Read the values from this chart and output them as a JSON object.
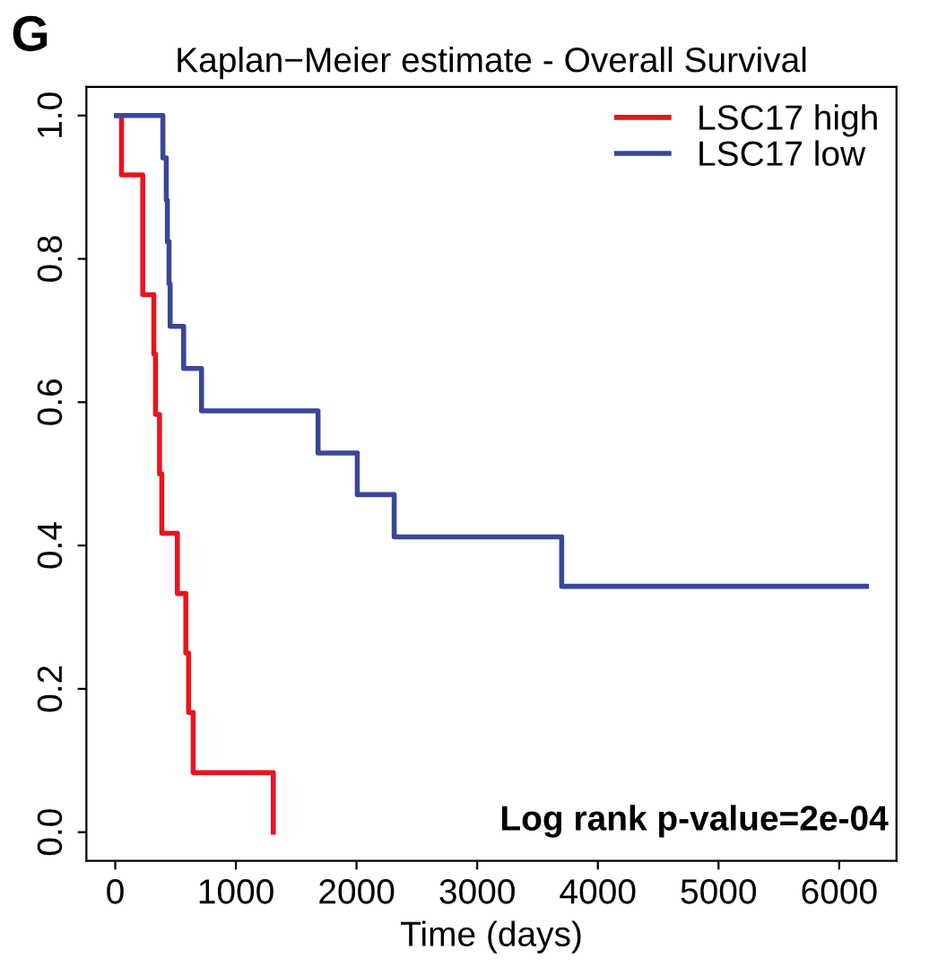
{
  "chart_data": {
    "type": "step",
    "title": "Kaplan−Meier estimate - Overall Survival",
    "xlabel": "Time (days)",
    "annotations": [
      "G",
      "Log rank p-value=2e-04"
    ],
    "series": [
      {
        "name": "LSC17 high",
        "color": "#e8141e",
        "x": [
          10,
          52,
          228,
          320,
          334,
          367,
          386,
          515,
          585,
          608,
          646,
          1310
        ],
        "values": [
          1,
          0.917,
          0.75,
          0.667,
          0.583,
          0.5,
          0.417,
          0.333,
          0.25,
          0.167,
          0.083,
          0
        ]
      },
      {
        "name": "LSC17 low",
        "color": "#3a469a",
        "x": [
          10,
          395,
          423,
          432,
          446,
          455,
          567,
          715,
          1681,
          2006,
          2312,
          3700,
          6226
        ],
        "values": [
          1,
          0.941,
          0.882,
          0.824,
          0.765,
          0.706,
          0.647,
          0.588,
          0.529,
          0.471,
          0.412,
          0.343,
          0.343
        ]
      }
    ],
    "xlim": [
      -239,
      6475
    ],
    "ylim": [
      -0.04,
      1.04
    ],
    "xticks": [
      0,
      1000,
      2000,
      3000,
      4000,
      5000,
      6000
    ],
    "yticks": [
      {
        "value": 0,
        "label": "0.0"
      },
      0.2,
      0.4,
      0.6,
      0.8,
      {
        "value": 1,
        "label": "1.0"
      }
    ],
    "grid": false,
    "legend": "top right"
  }
}
